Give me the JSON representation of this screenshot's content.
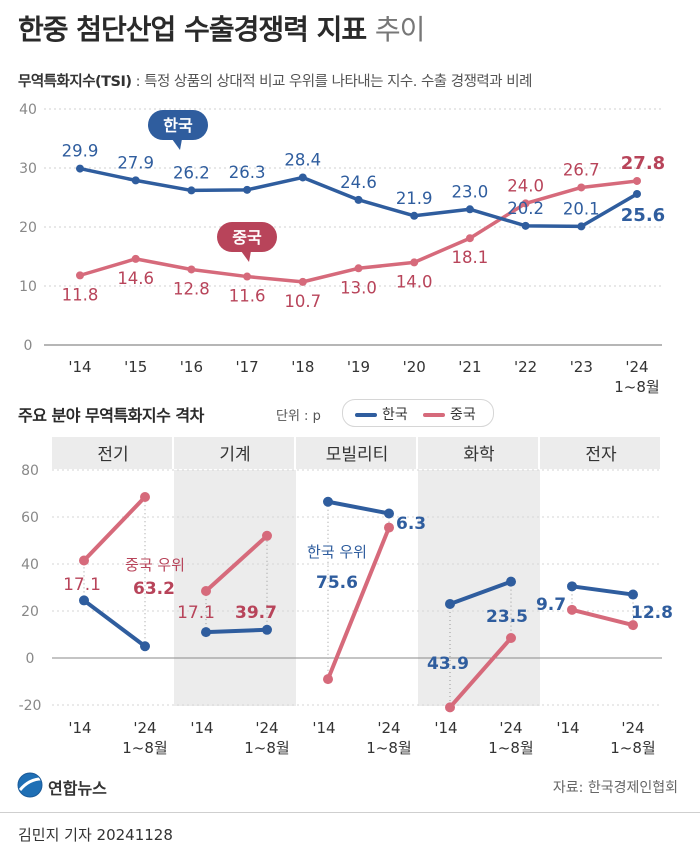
{
  "title": {
    "main": "한중 첨단산업 수출경쟁력 지표",
    "sub": "추이"
  },
  "definition": {
    "term": "무역특화지수(TSI)",
    "text": " : 특정 상품의 상대적 비교 우위를 나타내는 지수. 수출 경쟁력과 비례"
  },
  "section2": {
    "title": "주요 분야 무역특화지수 격차",
    "unit": "단위 : p"
  },
  "legend": {
    "korea": "한국",
    "china": "중국"
  },
  "colors": {
    "korea": "#2f5d9e",
    "china": "#d66a7b",
    "korea_text": "#2f5d9e",
    "china_text": "#b8445a"
  },
  "source": "자료: 한국경제인협회",
  "logo": "연합뉴스",
  "byline": "김민지 기자  20241128",
  "chart_data": [
    {
      "type": "line",
      "x": [
        "'14",
        "'15",
        "'16",
        "'17",
        "'18",
        "'19",
        "'20",
        "'21",
        "'22",
        "'23",
        "'24 1~8월"
      ],
      "ylim": [
        0,
        40
      ],
      "yticks": [
        0,
        10,
        20,
        30,
        40
      ],
      "grid": true,
      "series": [
        {
          "name": "한국",
          "values": [
            29.9,
            27.9,
            26.2,
            26.3,
            28.4,
            24.6,
            21.9,
            23.0,
            20.2,
            20.1,
            25.6
          ]
        },
        {
          "name": "중국",
          "values": [
            11.8,
            14.6,
            12.8,
            11.6,
            10.7,
            13.0,
            14.0,
            18.1,
            24.0,
            26.7,
            27.8
          ]
        }
      ]
    },
    {
      "type": "line",
      "panels": [
        "전기",
        "기계",
        "모빌리티",
        "화학",
        "전자"
      ],
      "x": [
        "'14",
        "'24 1~8월"
      ],
      "ylim": [
        -20,
        80
      ],
      "yticks": [
        -20,
        0,
        20,
        40,
        60,
        80
      ],
      "series": [
        {
          "name": "한국",
          "values": [
            [
              24.5,
              5
            ],
            [
              11,
              12
            ],
            [
              66.5,
              61.5
            ],
            [
              23,
              32.5
            ],
            [
              30.5,
              27
            ]
          ]
        },
        {
          "name": "중국",
          "values": [
            [
              41.5,
              68.5
            ],
            [
              28.5,
              52
            ],
            [
              -9,
              55.5
            ],
            [
              -21,
              8.5
            ],
            [
              20.5,
              14
            ]
          ]
        }
      ],
      "annotations": [
        {
          "panel": "전기",
          "label": "중국 우위",
          "values": [
            "17.1",
            "63.2"
          ]
        },
        {
          "panel": "기계",
          "values": [
            "17.1",
            "39.7"
          ]
        },
        {
          "panel": "모빌리티",
          "label": "한국 우위",
          "values": [
            "75.6",
            "6.3"
          ]
        },
        {
          "panel": "화학",
          "values": [
            "43.9",
            "23.5"
          ]
        },
        {
          "panel": "전자",
          "values": [
            "9.7",
            "12.8"
          ]
        }
      ]
    }
  ]
}
